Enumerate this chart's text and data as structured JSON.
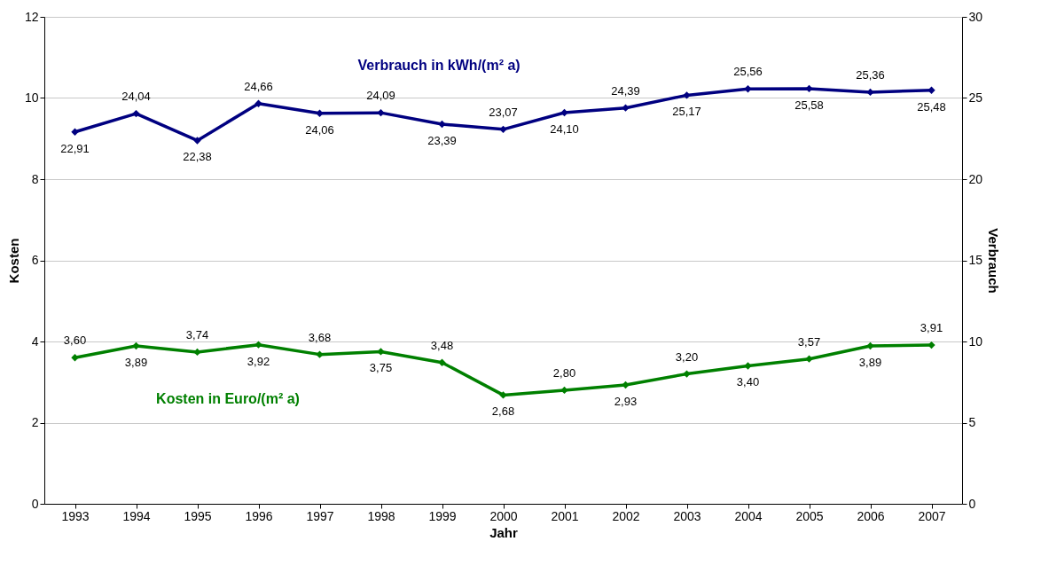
{
  "chart_data": {
    "type": "line",
    "xlabel": "Jahr",
    "ylabel": "Kosten",
    "y2label": "Verbrauch",
    "categories": [
      "1993",
      "1994",
      "1995",
      "1996",
      "1997",
      "1998",
      "1999",
      "2000",
      "2001",
      "2002",
      "2003",
      "2004",
      "2005",
      "2006",
      "2007"
    ],
    "series": [
      {
        "name": "Kosten in Euro/(m² a)",
        "color": "#008000",
        "values": [
          3.6,
          3.89,
          3.74,
          3.92,
          3.68,
          3.75,
          3.48,
          2.68,
          2.8,
          2.93,
          3.2,
          3.4,
          3.57,
          3.89,
          3.91
        ],
        "value_labels": [
          "3,60",
          "3,89",
          "3,74",
          "3,92",
          "3,68",
          "3,75",
          "3,48",
          "2,68",
          "2,80",
          "2,93",
          "3,20",
          "3,40",
          "3,57",
          "3,89",
          "3,91"
        ]
      },
      {
        "name": "Verbrauch in kWh/(m² a)",
        "color": "#000080",
        "axis": "y2",
        "values": [
          22.91,
          24.04,
          22.38,
          24.66,
          24.06,
          24.09,
          23.39,
          23.07,
          24.1,
          24.39,
          25.17,
          25.56,
          25.58,
          25.36,
          25.48
        ],
        "value_labels": [
          "22,91",
          "24,04",
          "22,38",
          "24,66",
          "24,06",
          "24,09",
          "23,39",
          "23,07",
          "24,10",
          "24,39",
          "25,17",
          "25,56",
          "25,58",
          "25,36",
          "25,48"
        ]
      }
    ],
    "ylim": [
      0,
      12
    ],
    "yticks": [
      0,
      2,
      4,
      6,
      8,
      10,
      12
    ],
    "y2lim": [
      0,
      30
    ],
    "y2ticks": [
      0,
      5,
      10,
      15,
      20,
      25,
      30
    ],
    "grid": "y",
    "legend": false,
    "marker": "diamond",
    "line_style": "solid"
  }
}
